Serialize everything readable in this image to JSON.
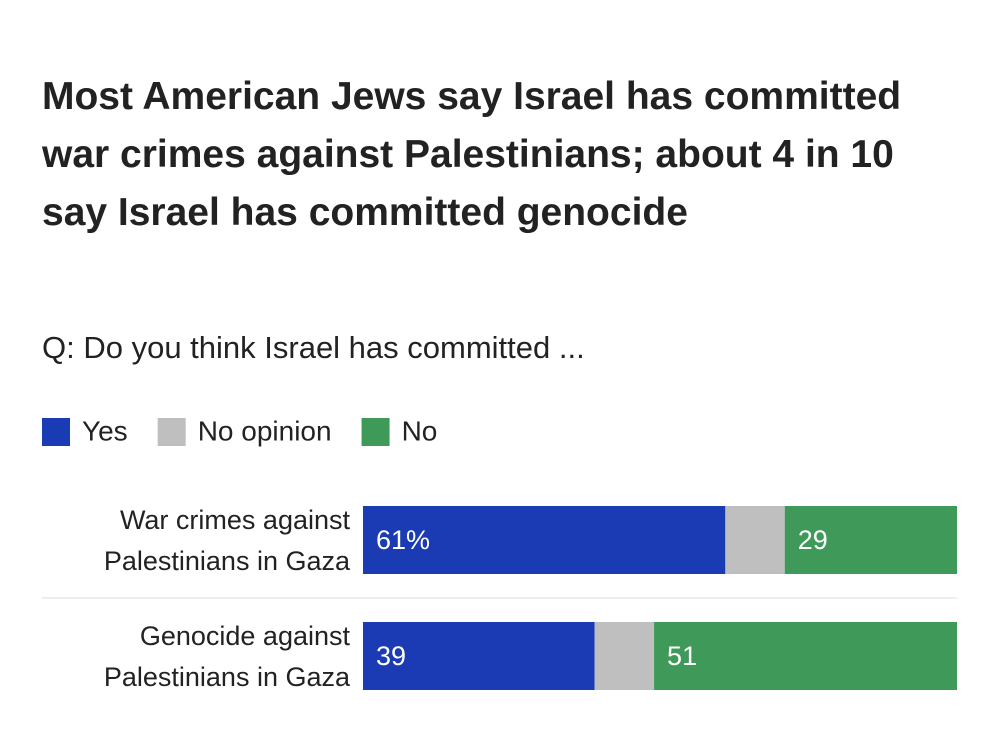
{
  "chart_data": {
    "type": "stacked-bar-horizontal",
    "title": "Most American Jews say Israel has committed war crimes against Palestinians; about 4 in 10 say Israel has committed genocide",
    "subtitle": "Q: Do you think Israel has committed ...",
    "categories": [
      [
        "War crimes against",
        "Palestinians in Gaza"
      ],
      [
        "Genocide against",
        "Palestinians in Gaza"
      ]
    ],
    "series": [
      {
        "name": "Yes",
        "color": "#1a3bb3",
        "values": [
          61,
          39
        ],
        "value_labels": [
          "61%",
          "39"
        ],
        "labels": true
      },
      {
        "name": "No opinion",
        "color": "#bfbfbf",
        "values": [
          10,
          10
        ],
        "labels": false
      },
      {
        "name": "No",
        "color": "#3f9a5a",
        "values": [
          29,
          51
        ],
        "labels": true
      }
    ],
    "xlim": [
      0,
      100
    ],
    "legend": "top-left"
  }
}
